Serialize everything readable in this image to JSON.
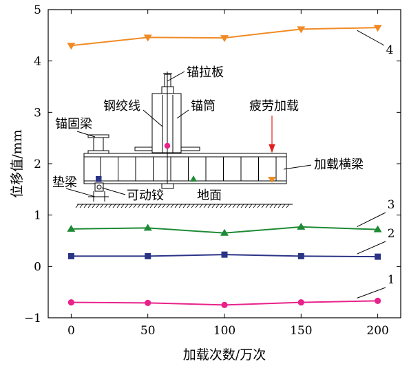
{
  "chart_data": {
    "type": "line",
    "xlabel": "加载次数/万次",
    "ylabel": "位移值/mm",
    "xlim": [
      -15,
      215
    ],
    "ylim": [
      -1,
      5
    ],
    "xticks": [
      0,
      50,
      100,
      150,
      200
    ],
    "yticks": [
      -1,
      0,
      1,
      2,
      3,
      4,
      5
    ],
    "ytick_labels": [
      "−1",
      "0",
      "1",
      "2",
      "3",
      "4",
      "5"
    ],
    "x": [
      0,
      50,
      100,
      150,
      200
    ],
    "series": [
      {
        "name": "1",
        "marker": "circle",
        "color": "#e8228a",
        "values": [
          -0.7,
          -0.71,
          -0.75,
          -0.7,
          -0.67
        ]
      },
      {
        "name": "2",
        "marker": "square",
        "color": "#2b3386",
        "values": [
          0.2,
          0.2,
          0.23,
          0.2,
          0.19
        ]
      },
      {
        "name": "3",
        "marker": "triangle-up",
        "color": "#1d8a34",
        "values": [
          0.73,
          0.75,
          0.65,
          0.77,
          0.72
        ]
      },
      {
        "name": "4",
        "marker": "triangle-down",
        "color": "#f08a24",
        "values": [
          4.3,
          4.46,
          4.45,
          4.62,
          4.65
        ]
      }
    ],
    "inset_labels": {
      "anchor_plate": "锚拉板",
      "strand": "钢绞线",
      "anchor_tube": "锚筒",
      "fatigue_load": "疲劳加载",
      "anchor_beam": "锚固梁",
      "loading_beam": "加载横梁",
      "pad_beam": "垫梁",
      "hinge": "可动铰",
      "ground": "地面"
    },
    "inset_marker_colors": {
      "anchor_plate_point": "#e8228a",
      "anchor_beam_point": "#2b3386",
      "beam_mid_point": "#1d8a34",
      "load_point": "#f08a24"
    }
  }
}
